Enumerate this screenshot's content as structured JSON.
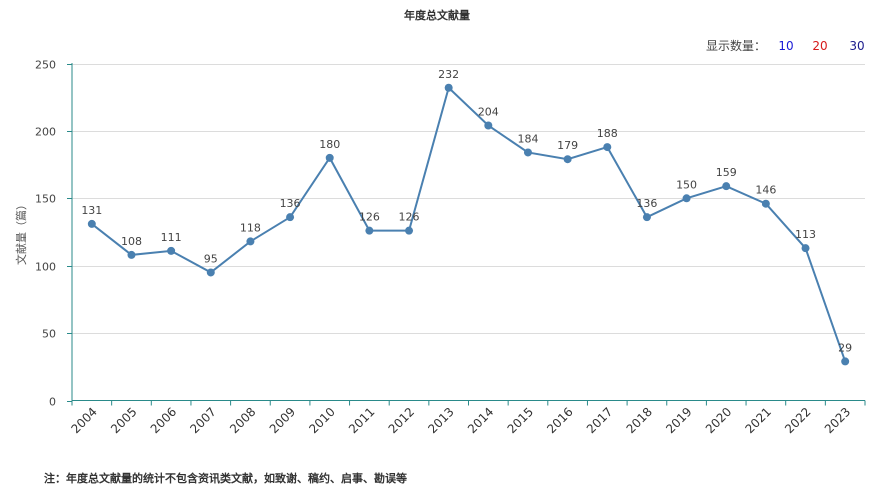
{
  "chart_data": {
    "type": "line",
    "title": "年度总文献量",
    "ylabel": "文献量（篇）",
    "xlabel": "",
    "x": [
      "2004",
      "2005",
      "2006",
      "2007",
      "2008",
      "2009",
      "2010",
      "2011",
      "2012",
      "2013",
      "2014",
      "2015",
      "2016",
      "2017",
      "2018",
      "2019",
      "2020",
      "2021",
      "2022",
      "2023"
    ],
    "series": [
      {
        "values": [
          131,
          108,
          111,
          95,
          118,
          136,
          180,
          126,
          126,
          232,
          204,
          184,
          179,
          188,
          136,
          150,
          159,
          146,
          113,
          29
        ]
      }
    ],
    "ylim": [
      0,
      250
    ],
    "yticks": [
      "0",
      "50",
      "100",
      "150",
      "200",
      "250"
    ],
    "grid": true,
    "line_color": "#4a80b0"
  },
  "display_control": {
    "label": "显示数量：",
    "options": [
      {
        "label": "10",
        "color": "#1a1ad6"
      },
      {
        "label": "20",
        "color": "#d61a1a"
      },
      {
        "label": "30",
        "color": "#1a1a8c"
      }
    ]
  },
  "footnote": "注：年度总文献量的统计不包含资讯类文献，如致谢、稿约、启事、勘误等"
}
